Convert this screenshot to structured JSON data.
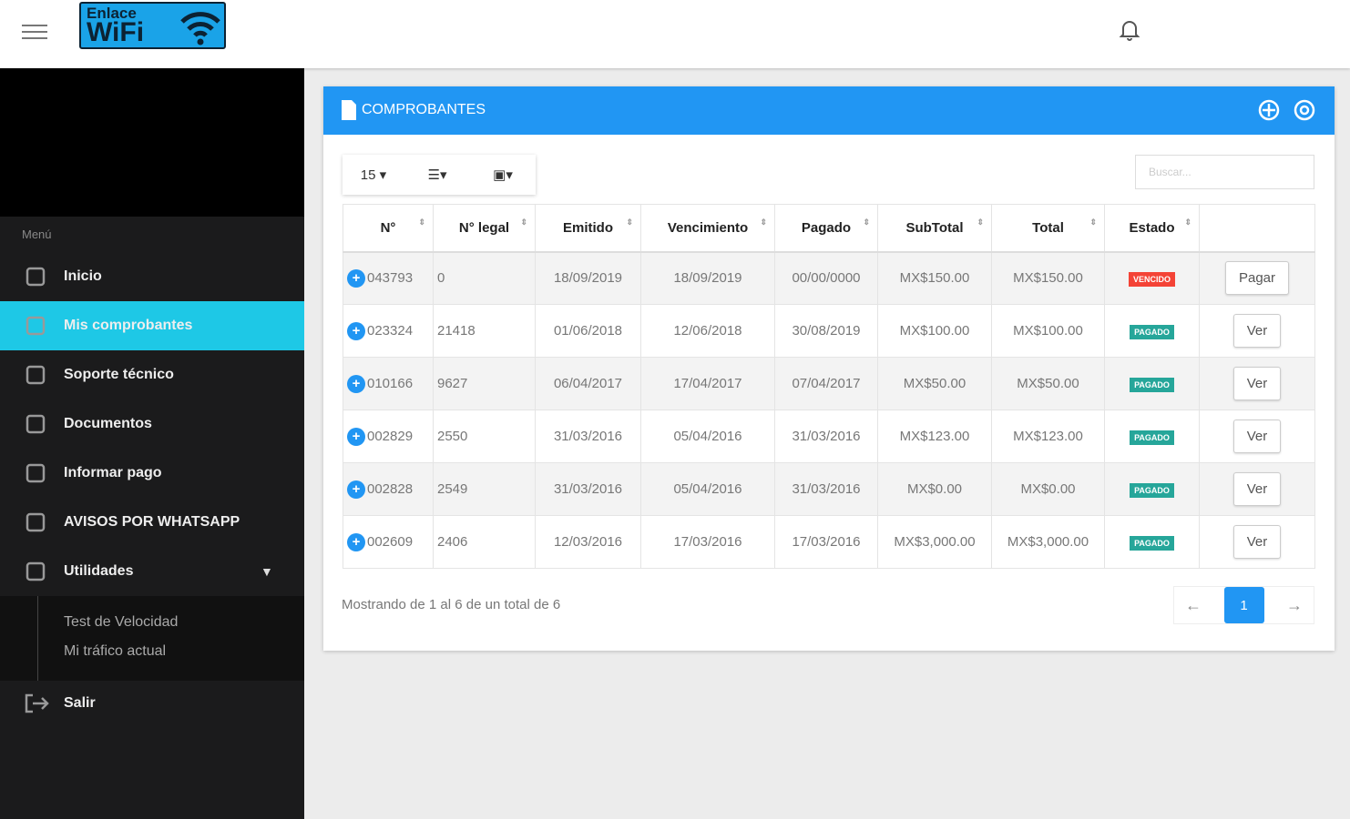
{
  "header": {
    "logo_line1": "Enlace",
    "logo_line2": "WiFi"
  },
  "sidebar": {
    "menu_label": "Menú",
    "items": [
      "Inicio",
      "Mis comprobantes",
      "Soporte técnico",
      "Documentos",
      "Informar pago",
      "AVISOS POR WHATSAPP",
      "Utilidades"
    ],
    "subitems": [
      "Test de Velocidad",
      "Mi tráfico actual"
    ],
    "logout": "Salir"
  },
  "panel": {
    "title": "COMPROBANTES",
    "page_size": "15",
    "search_placeholder": "Buscar...",
    "table": {
      "columns": [
        "N°",
        "N° legal",
        "Emitido",
        "Vencimiento",
        "Pagado",
        "SubTotal",
        "Total",
        "Estado"
      ],
      "rows": [
        [
          "043793",
          "0",
          "18/09/2019",
          "18/09/2019",
          "00/00/0000",
          "MX$150.00",
          "MX$150.00",
          "VENCIDO",
          "Pagar"
        ],
        [
          "023324",
          "21418",
          "01/06/2018",
          "12/06/2018",
          "30/08/2019",
          "MX$100.00",
          "MX$100.00",
          "PAGADO",
          "Ver"
        ],
        [
          "010166",
          "9627",
          "06/04/2017",
          "17/04/2017",
          "07/04/2017",
          "MX$50.00",
          "MX$50.00",
          "PAGADO",
          "Ver"
        ],
        [
          "002829",
          "2550",
          "31/03/2016",
          "05/04/2016",
          "31/03/2016",
          "MX$123.00",
          "MX$123.00",
          "PAGADO",
          "Ver"
        ],
        [
          "002828",
          "2549",
          "31/03/2016",
          "05/04/2016",
          "31/03/2016",
          "MX$0.00",
          "MX$0.00",
          "PAGADO",
          "Ver"
        ],
        [
          "002609",
          "2406",
          "12/03/2016",
          "17/03/2016",
          "17/03/2016",
          "MX$3,000.00",
          "MX$3,000.00",
          "PAGADO",
          "Ver"
        ]
      ]
    },
    "footer": "Mostrando de 1 al 6 de un total de 6",
    "page": "1"
  }
}
